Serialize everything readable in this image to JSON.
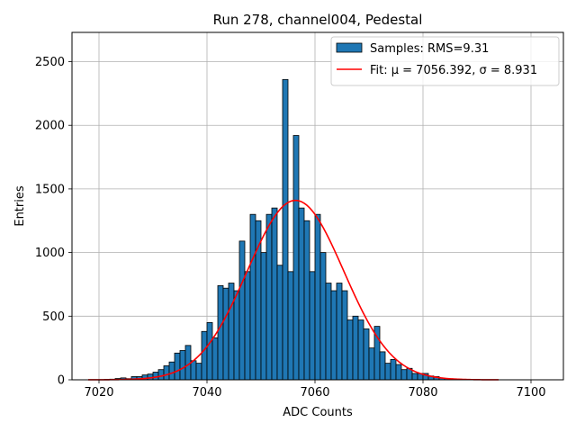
{
  "chart_data": {
    "type": "bar",
    "title": "Run 278, channel004, Pedestal",
    "xlabel": "ADC Counts",
    "ylabel": "Entries",
    "xlim": [
      7015,
      7106
    ],
    "ylim": [
      0,
      2730
    ],
    "xticks": [
      7020,
      7040,
      7060,
      7080,
      7100
    ],
    "yticks": [
      0,
      500,
      1000,
      1500,
      2000,
      2500
    ],
    "grid": true,
    "legend_position": "top-right",
    "colors": {
      "bars": "#1f77b4",
      "edges": "#000000",
      "fit": "#ff0000",
      "grid": "#b0b0b0"
    },
    "histogram": {
      "name": "Samples: RMS=9.31",
      "bin_start": 7018,
      "bin_width": 1,
      "counts": [
        0,
        0,
        0,
        3,
        5,
        10,
        15,
        9,
        25,
        25,
        38,
        45,
        60,
        80,
        110,
        140,
        210,
        230,
        270,
        150,
        130,
        380,
        450,
        330,
        740,
        720,
        760,
        700,
        1090,
        850,
        1300,
        1250,
        1000,
        1300,
        1350,
        900,
        2360,
        850,
        1920,
        1350,
        1250,
        850,
        1300,
        1000,
        760,
        700,
        760,
        700,
        470,
        500,
        470,
        400,
        250,
        420,
        220,
        130,
        160,
        120,
        80,
        90,
        50,
        50,
        50,
        30,
        25,
        15,
        10,
        8,
        5,
        3,
        2,
        1,
        1,
        0,
        0,
        0
      ]
    },
    "fit": {
      "label": "Fit: μ = 7056.392, σ = 8.931",
      "mu": 7056.392,
      "sigma": 8.931,
      "amplitude": 1410,
      "x_range": [
        7018,
        7094
      ]
    }
  },
  "legend": {
    "samples_label": "Samples: RMS=9.31",
    "fit_label": "Fit: μ = 7056.392, σ = 8.931"
  }
}
